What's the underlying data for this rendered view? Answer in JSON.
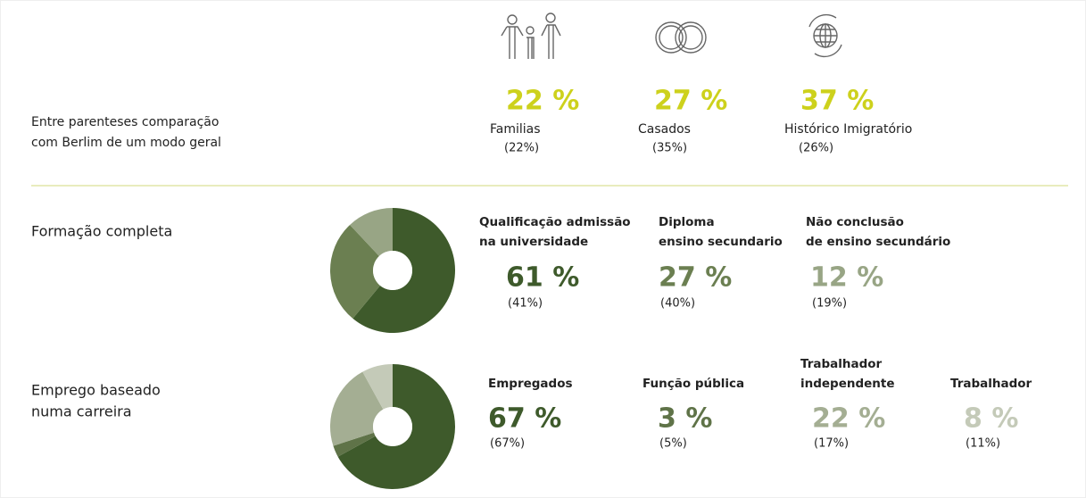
{
  "intro": [
    "Entre parenteses comparação",
    "com Berlim de um modo geral"
  ],
  "stats": [
    {
      "value": 22,
      "value_label": "22 %",
      "name": "Familias",
      "compare": "(22%)"
    },
    {
      "value": 27,
      "value_label": "27 %",
      "name": "Casados",
      "compare": "(35%)"
    },
    {
      "value": 37,
      "value_label": "37 %",
      "name": "Histórico  Imigratório",
      "compare": "(26%)"
    }
  ],
  "stats_color": "#cdd11c",
  "sections": [
    {
      "title": [
        "Formação completa"
      ],
      "items": [
        {
          "name": [
            "Qualificação admissão",
            "na universidade"
          ],
          "value": 61,
          "value_label": "61 %",
          "compare": "(41%)",
          "color": "#3e5a2b"
        },
        {
          "name": [
            "Diploma",
            "ensino secundario"
          ],
          "value": 27,
          "value_label": "27 %",
          "compare": "(40%)",
          "color": "#6b7f51"
        },
        {
          "name": [
            "Não conclusão",
            "de ensino secundário"
          ],
          "value": 12,
          "value_label": "12 %",
          "compare": "(19%)",
          "color": "#98a585"
        }
      ]
    },
    {
      "title": [
        "Emprego baseado",
        " numa carreira"
      ],
      "items": [
        {
          "name": [
            "Empregados"
          ],
          "value": 67,
          "value_label": "67 %",
          "compare": "(67%)",
          "color": "#3e5a2b"
        },
        {
          "name": [
            "Função pública"
          ],
          "value": 3,
          "value_label": "3 %",
          "compare": "(5%)",
          "color": "#5f7348"
        },
        {
          "name": [
            "Trabalhador",
            "independente"
          ],
          "value": 22,
          "value_label": "22 %",
          "compare": "(17%)",
          "color": "#a4ae93"
        },
        {
          "name": [
            "Trabalhador"
          ],
          "value": 8,
          "value_label": "8 %",
          "compare": "(11%)",
          "color": "#c4cab8"
        }
      ]
    }
  ]
}
